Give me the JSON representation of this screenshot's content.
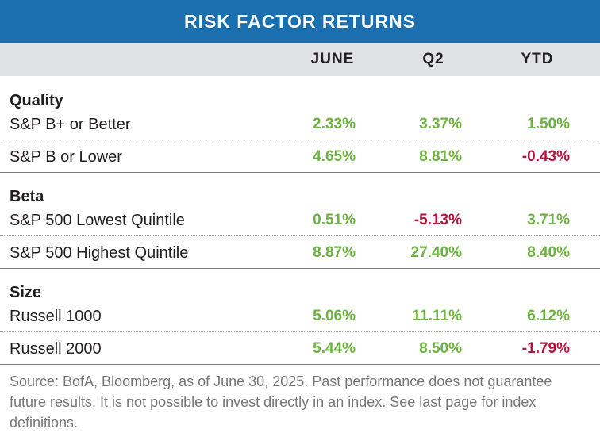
{
  "title": "RISK FACTOR RETURNS",
  "columns": [
    "JUNE",
    "Q2",
    "YTD"
  ],
  "sections": [
    {
      "heading": "Quality",
      "rows": [
        {
          "label": "S&P B+ or Better",
          "values": [
            "2.33%",
            "3.37%",
            "1.50%"
          ]
        },
        {
          "label": "S&P B or Lower",
          "values": [
            "4.65%",
            "8.81%",
            "-0.43%"
          ]
        }
      ]
    },
    {
      "heading": "Beta",
      "rows": [
        {
          "label": "S&P 500 Lowest Quintile",
          "values": [
            "0.51%",
            "-5.13%",
            "3.71%"
          ]
        },
        {
          "label": "S&P 500 Highest Quintile",
          "values": [
            "8.87%",
            "27.40%",
            "8.40%"
          ]
        }
      ]
    },
    {
      "heading": "Size",
      "rows": [
        {
          "label": "Russell 1000",
          "values": [
            "5.06%",
            "11.11%",
            "6.12%"
          ]
        },
        {
          "label": "Russell 2000",
          "values": [
            "5.44%",
            "8.50%",
            "-1.79%"
          ]
        }
      ]
    }
  ],
  "colors": {
    "title_bar": "#1b6fae",
    "header_bg": "#e1e2e3",
    "positive": "#6db33f",
    "negative": "#b5123c"
  },
  "source": "Source: BofA, Bloomberg, as of June 30, 2025. Past performance does not guarantee future results. It is not possible to invest directly in an index. See last page for index definitions."
}
